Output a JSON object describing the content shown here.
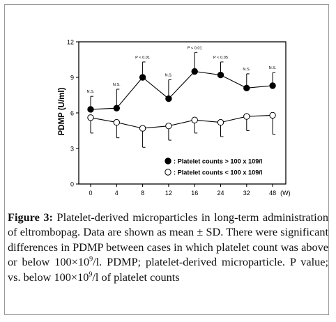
{
  "chart_data": {
    "type": "line",
    "ylabel": "PDMP (U/ml)",
    "x_unit": "(W)",
    "x": [
      "0",
      "4",
      "8",
      "12",
      "16",
      "24",
      "32",
      "48"
    ],
    "y_ticks": [
      "0",
      "3",
      "6",
      "9",
      "12"
    ],
    "ylim": [
      0,
      12
    ],
    "grid": false,
    "legend_position": "bottom-right",
    "series": [
      {
        "name": "Platelet counts > 100 x 109/l",
        "marker": "filled-circle",
        "color": "#000000",
        "values": [
          6.3,
          6.4,
          9.0,
          7.2,
          9.5,
          9.2,
          8.1,
          8.3
        ],
        "sd": [
          1.1,
          1.6,
          1.3,
          1.6,
          1.6,
          1.1,
          1.2,
          1.1
        ]
      },
      {
        "name": "Platelet counts < 100 x 109/l",
        "marker": "open-circle",
        "color": "#000000",
        "values": [
          5.6,
          5.2,
          4.7,
          4.9,
          5.4,
          5.2,
          5.7,
          5.8
        ],
        "sd": [
          1.3,
          1.3,
          1.6,
          1.2,
          1.1,
          1.2,
          1.2,
          1.6
        ]
      }
    ],
    "annotations": [
      "N.S.",
      "N.S.",
      "P < 0.01",
      "N.S.",
      "P < 0.01",
      "P < 0.05",
      "N.S.",
      "N.S."
    ]
  },
  "caption": {
    "label": "Figure 3:",
    "text_1": " Platelet-derived microparticles in long-term administration of eltrombopag. Data are shown as mean ± SD. There were significant differences in PDMP between cases in which platelet count was above or below 100×10",
    "sup_1": "9",
    "text_2": "/l. PDMP; platelet-derived microparticle. P value; vs. below 100×10",
    "sup_2": "9",
    "text_3": "/l of platelet counts"
  }
}
